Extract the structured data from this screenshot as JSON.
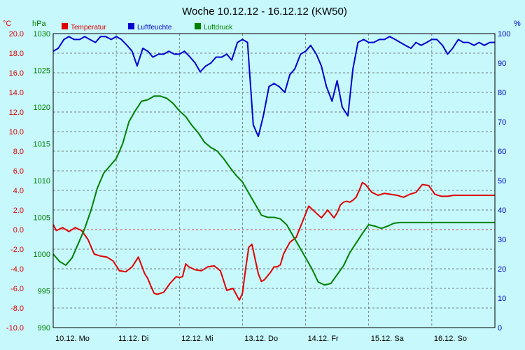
{
  "chart_data": {
    "type": "line",
    "title": "Woche 10.12.12 - 16.12.12 (KW50)",
    "legend_position": "top-left",
    "grid": true,
    "background": "#c6f8fc",
    "left_axes": [
      {
        "unit": "°C",
        "color": "#e00000",
        "range": [
          -10,
          20
        ],
        "ticks": [
          "-10.0",
          "-8.0",
          "-6.0",
          "-4.0",
          "-2.0",
          "0.0",
          "2.0",
          "4.0",
          "6.0",
          "8.0",
          "10.0",
          "12.0",
          "14.0",
          "16.0",
          "18.0",
          "20.0"
        ]
      },
      {
        "unit": "hPa",
        "color": "#008000",
        "range": [
          990,
          1030
        ],
        "ticks": [
          "990",
          "995",
          "1000",
          "1005",
          "1010",
          "1015",
          "1020",
          "1025",
          "1030"
        ]
      }
    ],
    "right_axis": {
      "unit": "%",
      "color": "#0000d0",
      "range": [
        0,
        100
      ],
      "ticks": [
        "0",
        "10",
        "20",
        "30",
        "40",
        "50",
        "60",
        "70",
        "80",
        "90",
        "100"
      ]
    },
    "x_range": [
      0,
      7
    ],
    "x_ticks": [
      {
        "x": 0,
        "label": "10.12.  Mo"
      },
      {
        "x": 1,
        "label": "11.12.  Di"
      },
      {
        "x": 2,
        "label": "12.12.  Mi"
      },
      {
        "x": 3,
        "label": "13.12.  Do"
      },
      {
        "x": 4,
        "label": "14.12.  Fr"
      },
      {
        "x": 5,
        "label": "15.12.  Sa"
      },
      {
        "x": 6,
        "label": "16.12.  So"
      }
    ],
    "series": [
      {
        "name": "Temperatur",
        "color": "#e00000",
        "axis": "temp",
        "x": [
          0.0,
          0.05,
          0.15,
          0.25,
          0.35,
          0.45,
          0.55,
          0.65,
          0.75,
          0.85,
          0.95,
          1.05,
          1.15,
          1.25,
          1.35,
          1.45,
          1.5,
          1.55,
          1.6,
          1.65,
          1.75,
          1.85,
          1.95,
          2.0,
          2.05,
          2.1,
          2.15,
          2.25,
          2.35,
          2.45,
          2.55,
          2.65,
          2.75,
          2.85,
          2.95,
          3.0,
          3.05,
          3.1,
          3.15,
          3.25,
          3.3,
          3.35,
          3.45,
          3.5,
          3.55,
          3.6,
          3.65,
          3.75,
          3.85,
          3.95,
          4.05,
          4.15,
          4.25,
          4.35,
          4.45,
          4.5,
          4.55,
          4.6,
          4.65,
          4.7,
          4.75,
          4.8,
          4.85,
          4.9,
          4.95,
          5.05,
          5.15,
          5.25,
          5.35,
          5.45,
          5.5,
          5.55,
          5.65,
          5.75,
          5.85,
          5.95,
          6.05,
          6.15,
          6.25,
          6.35,
          6.45,
          6.55,
          6.65,
          6.75,
          6.85,
          6.95,
          7.0
        ],
        "values": [
          0.5,
          -0.1,
          0.2,
          -0.2,
          0.2,
          -0.1,
          -1.0,
          -2.5,
          -2.7,
          -2.8,
          -3.2,
          -4.2,
          -4.3,
          -3.8,
          -2.8,
          -4.5,
          -5.0,
          -5.8,
          -6.5,
          -6.6,
          -6.4,
          -5.5,
          -4.8,
          -4.9,
          -4.8,
          -3.5,
          -3.8,
          -4.1,
          -4.2,
          -3.8,
          -3.7,
          -4.2,
          -6.2,
          -6.0,
          -7.2,
          -6.5,
          -4.0,
          -1.8,
          -1.5,
          -4.5,
          -5.3,
          -5.1,
          -4.3,
          -3.8,
          -3.8,
          -3.6,
          -2.5,
          -1.3,
          -0.8,
          0.8,
          2.4,
          1.8,
          1.2,
          2.0,
          1.2,
          1.7,
          2.5,
          2.8,
          2.9,
          2.8,
          3.0,
          3.3,
          4.0,
          4.8,
          4.6,
          3.8,
          3.5,
          3.7,
          3.6,
          3.5,
          3.4,
          3.3,
          3.6,
          3.8,
          4.6,
          4.5,
          3.6,
          3.4,
          3.4,
          3.5,
          3.5,
          3.5,
          3.5,
          3.5,
          3.5,
          3.5,
          3.5
        ]
      },
      {
        "name": "Luftfeuchte",
        "color": "#0000d0",
        "axis": "hum",
        "x": [
          0.0,
          0.08,
          0.17,
          0.25,
          0.33,
          0.42,
          0.5,
          0.58,
          0.67,
          0.75,
          0.83,
          0.92,
          1.0,
          1.08,
          1.17,
          1.25,
          1.33,
          1.42,
          1.5,
          1.58,
          1.67,
          1.75,
          1.83,
          1.92,
          2.0,
          2.08,
          2.17,
          2.25,
          2.33,
          2.42,
          2.5,
          2.58,
          2.67,
          2.75,
          2.83,
          2.92,
          3.0,
          3.08,
          3.17,
          3.25,
          3.33,
          3.42,
          3.5,
          3.58,
          3.67,
          3.75,
          3.83,
          3.92,
          4.0,
          4.08,
          4.17,
          4.25,
          4.33,
          4.42,
          4.5,
          4.58,
          4.67,
          4.75,
          4.83,
          4.92,
          5.0,
          5.08,
          5.17,
          5.25,
          5.33,
          5.42,
          5.5,
          5.58,
          5.67,
          5.75,
          5.83,
          5.92,
          6.0,
          6.08,
          6.17,
          6.25,
          6.33,
          6.42,
          6.5,
          6.58,
          6.67,
          6.75,
          6.83,
          6.92,
          7.0
        ],
        "values": [
          94,
          95,
          98,
          99,
          98,
          98,
          99,
          98,
          97,
          99,
          99,
          98,
          99,
          98,
          96,
          94,
          89,
          95,
          94,
          92,
          93,
          93,
          94,
          93,
          93,
          94,
          92,
          90,
          87,
          89,
          90,
          92,
          92,
          93,
          91,
          97,
          98,
          97,
          69,
          65,
          72,
          82,
          83,
          82,
          80,
          86,
          88,
          93,
          94,
          96,
          93,
          89,
          82,
          77,
          84,
          75,
          72,
          88,
          97,
          98,
          97,
          97,
          98,
          98,
          99,
          98,
          97,
          96,
          95,
          97,
          96,
          97,
          98,
          98,
          96,
          93,
          95,
          98,
          97,
          97,
          96,
          97,
          96,
          97,
          97
        ],
        "x_fixed": [
          0.0,
          0.08,
          0.17,
          0.25,
          0.33,
          0.42,
          0.5,
          0.58,
          0.67,
          0.75,
          0.83,
          0.92,
          1.0,
          1.08,
          1.17,
          1.25,
          1.33,
          1.42,
          1.5,
          1.58,
          1.67,
          1.75,
          1.83,
          1.92,
          2.0,
          2.08,
          2.17,
          2.25,
          2.33,
          2.42,
          2.5,
          2.58,
          2.67,
          2.75,
          2.83,
          2.92,
          3.0,
          3.08,
          3.17,
          3.25,
          3.33,
          3.42,
          3.5,
          3.58,
          3.67,
          3.75,
          3.83,
          3.92,
          4.0,
          4.08,
          4.17,
          4.25,
          4.33,
          4.42,
          4.5,
          4.58,
          4.67,
          4.75,
          4.83,
          4.92,
          5.0,
          5.08,
          5.17,
          5.25,
          5.33,
          5.42,
          5.5,
          5.58,
          5.67,
          5.75,
          5.83,
          5.92,
          6.0,
          6.08,
          6.17,
          6.25,
          6.33,
          6.42,
          6.5,
          6.58,
          6.67,
          6.75,
          6.83,
          6.92,
          7.0
        ]
      },
      {
        "name": "Luftdruck",
        "color": "#008000",
        "axis": "press",
        "x": [
          0.0,
          0.1,
          0.2,
          0.3,
          0.4,
          0.5,
          0.6,
          0.7,
          0.8,
          0.9,
          1.0,
          1.1,
          1.2,
          1.3,
          1.4,
          1.5,
          1.6,
          1.7,
          1.8,
          1.9,
          2.0,
          2.1,
          2.2,
          2.3,
          2.4,
          2.5,
          2.6,
          2.7,
          2.8,
          2.9,
          3.0,
          3.1,
          3.2,
          3.3,
          3.4,
          3.5,
          3.6,
          3.7,
          3.8,
          3.9,
          4.0,
          4.1,
          4.2,
          4.3,
          4.4,
          4.5,
          4.6,
          4.7,
          4.8,
          4.9,
          5.0,
          5.1,
          5.2,
          5.3,
          5.4,
          5.5,
          5.6,
          5.7,
          5.8,
          5.9,
          6.0,
          6.1,
          6.2,
          6.3,
          6.4,
          6.5,
          6.6,
          6.7,
          6.8,
          6.9,
          7.0
        ],
        "values": [
          1000,
          999,
          998.5,
          999.5,
          1001.5,
          1003.5,
          1006,
          1009,
          1011,
          1012,
          1013,
          1015,
          1018,
          1019.5,
          1020.8,
          1021,
          1021.5,
          1021.5,
          1021.2,
          1020.5,
          1019.5,
          1018.7,
          1017.5,
          1016.5,
          1015.2,
          1014.5,
          1014,
          1013,
          1011.8,
          1010.7,
          1009.8,
          1008.3,
          1006.8,
          1005.3,
          1005,
          1005,
          1004.8,
          1004,
          1002.5,
          1001,
          999.5,
          998,
          996.2,
          995.8,
          996,
          997.2,
          998.4,
          1000.2,
          1001.5,
          1002.8,
          1004,
          1003.8,
          1003.5,
          1003.8,
          1004.2,
          1004.3,
          1004.3,
          1004.3,
          1004.3,
          1004.3,
          1004.3,
          1004.3,
          1004.3,
          1004.3,
          1004.3,
          1004.3,
          1004.3,
          1004.3,
          1004.3,
          1004.3,
          1004.3
        ]
      }
    ]
  }
}
